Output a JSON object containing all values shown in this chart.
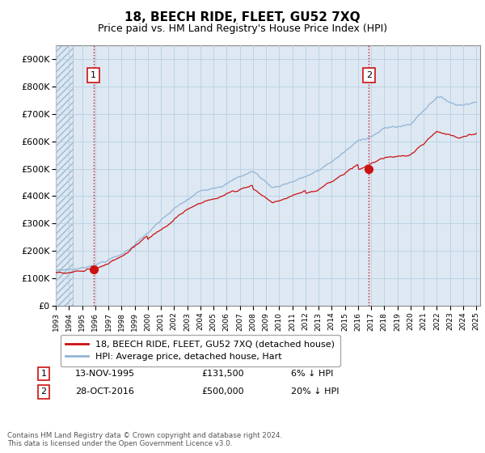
{
  "title": "18, BEECH RIDE, FLEET, GU52 7XQ",
  "subtitle": "Price paid vs. HM Land Registry's House Price Index (HPI)",
  "ylim": [
    0,
    950000
  ],
  "yticks": [
    0,
    100000,
    200000,
    300000,
    400000,
    500000,
    600000,
    700000,
    800000,
    900000
  ],
  "ytick_labels": [
    "£0",
    "£100K",
    "£200K",
    "£300K",
    "£400K",
    "£500K",
    "£600K",
    "£700K",
    "£800K",
    "£900K"
  ],
  "hpi_color": "#92b4d4",
  "price_color": "#cc1111",
  "vline_color": "#cc1111",
  "purchase1_date_num": 1995.87,
  "purchase1_price": 131500,
  "purchase2_date_num": 2016.83,
  "purchase2_price": 500000,
  "legend_label_price": "18, BEECH RIDE, FLEET, GU52 7XQ (detached house)",
  "legend_label_hpi": "HPI: Average price, detached house, Hart",
  "annotation1_label": "1",
  "annotation1_date": "13-NOV-1995",
  "annotation1_price": "£131,500",
  "annotation1_pct": "6% ↓ HPI",
  "annotation2_label": "2",
  "annotation2_date": "28-OCT-2016",
  "annotation2_price": "£500,000",
  "annotation2_pct": "20% ↓ HPI",
  "footer": "Contains HM Land Registry data © Crown copyright and database right 2024.\nThis data is licensed under the Open Government Licence v3.0.",
  "chart_bg": "#dde8f3",
  "grid_color": "#b8cfe0",
  "hatch_color": "#c8d8e8",
  "title_fontsize": 11,
  "subtitle_fontsize": 9
}
